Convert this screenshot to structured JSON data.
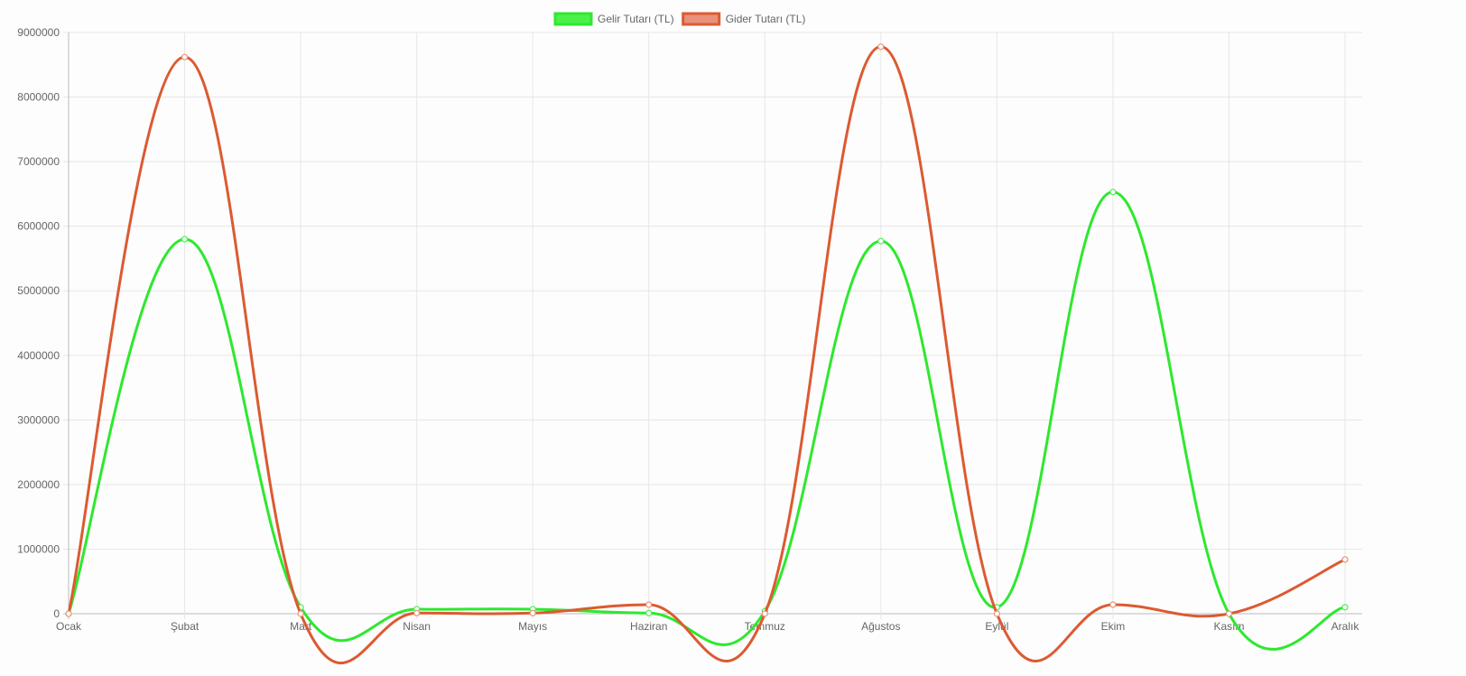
{
  "chart_data": {
    "type": "line",
    "categories": [
      "Ocak",
      "Şubat",
      "Mart",
      "Nisan",
      "Mayıs",
      "Haziran",
      "Temmuz",
      "Ağustos",
      "Eylül",
      "Ekim",
      "Kasım",
      "Aralık"
    ],
    "ylim": [
      0,
      9000000
    ],
    "yticks": [
      0,
      1000000,
      2000000,
      3000000,
      4000000,
      5000000,
      6000000,
      7000000,
      8000000,
      9000000
    ],
    "grid": true,
    "legend_position": "top",
    "series": [
      {
        "name": "Gelir Tutarı (TL)",
        "color": "#2ee82e",
        "fill": "#4cf04c",
        "values": [
          0,
          5800000,
          100000,
          70000,
          70000,
          10000,
          40000,
          5770000,
          100000,
          6530000,
          0,
          100000
        ]
      },
      {
        "name": "Gider Tutarı (TL)",
        "color": "#dc5a32",
        "fill": "#e8927a",
        "values": [
          0,
          8620000,
          0,
          10000,
          10000,
          140000,
          0,
          8780000,
          0,
          140000,
          0,
          840000
        ]
      }
    ]
  }
}
